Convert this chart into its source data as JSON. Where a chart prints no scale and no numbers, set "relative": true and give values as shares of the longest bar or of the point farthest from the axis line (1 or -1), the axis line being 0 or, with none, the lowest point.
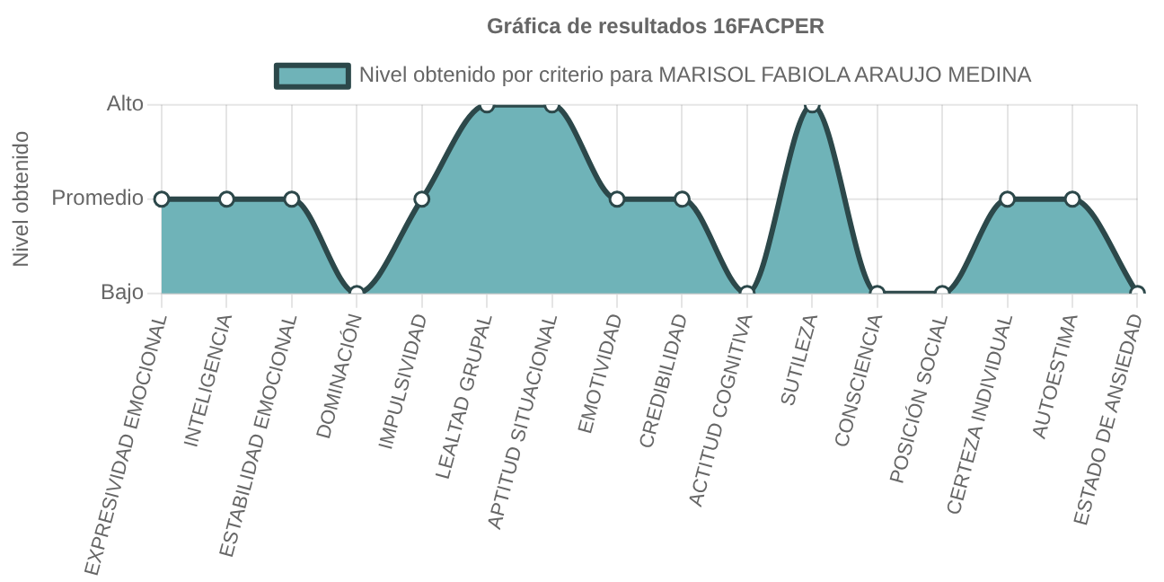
{
  "chart_data": {
    "type": "area",
    "title": "Gráfica de resultados 16FACPER",
    "ylabel": "Nivel obtenido",
    "categories": [
      "EXPRESIVIDAD EMOCIONAL",
      "INTELIGENCIA",
      "ESTABILIDAD EMOCIONAL",
      "DOMINACIÓN",
      "IMPULSIVIDAD",
      "LEALTAD GRUPAL",
      "APTITUD SITUACIONAL",
      "EMOTIVIDAD",
      "CREDIBILIDAD",
      "ACTITUD COGNITIVA",
      "SUTILEZA",
      "CONSCIENCIA",
      "POSICIÓN SOCIAL",
      "CERTEZA INDIVIDUAL",
      "AUTOESTIMA",
      "ESTADO DE ANSIEDAD"
    ],
    "series": [
      {
        "name": "Nivel obtenido por criterio para MARISOL FABIOLA ARAUJO MEDINA",
        "color": "#6fb3b8",
        "values": [
          0.5,
          0.5,
          0.5,
          0,
          0.5,
          1,
          1,
          0.5,
          0.5,
          0,
          1,
          0,
          0,
          0.5,
          0.5,
          0
        ]
      }
    ],
    "relative": true,
    "annotations": [
      "Bajo",
      "Promedio",
      "Alto"
    ],
    "grid": true,
    "legend": "top",
    "marker": "circle",
    "line_style": "solid"
  }
}
